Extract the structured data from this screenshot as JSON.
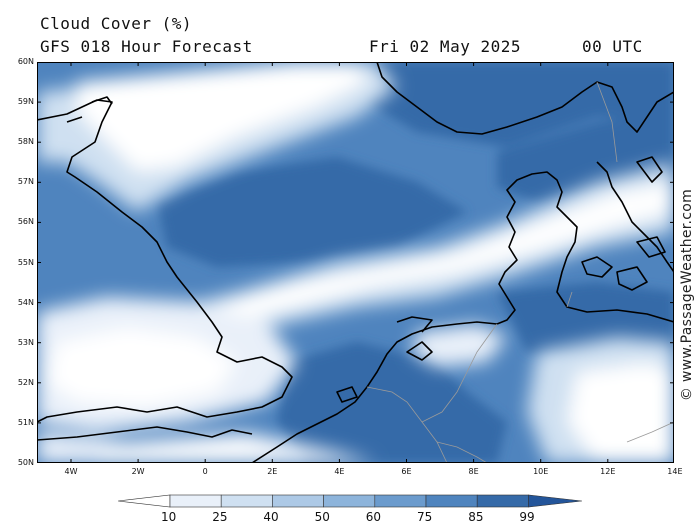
{
  "header": {
    "title": "Cloud Cover (%)",
    "subtitle": "GFS 018 Hour Forecast",
    "date": "Fri 02 May 2025",
    "time": "00 UTC"
  },
  "credit": "© www.PassageWeather.com",
  "latitude_labels": [
    "60N",
    "59N",
    "58N",
    "57N",
    "56N",
    "55N",
    "54N",
    "53N",
    "52N",
    "51N",
    "50N"
  ],
  "longitude_labels": [
    "4W",
    "2W",
    "0",
    "2E",
    "4E",
    "6E",
    "8E",
    "10E",
    "12E",
    "14E"
  ],
  "legend": {
    "thresholds": [
      "10",
      "25",
      "40",
      "50",
      "60",
      "75",
      "85",
      "99"
    ],
    "colors": [
      "#ffffff",
      "#e9f0f9",
      "#cfe0f1",
      "#adc9e6",
      "#8db4db",
      "#6b9bcd",
      "#4f84be",
      "#356aa8",
      "#23559a"
    ]
  },
  "map_colors": {
    "land_line": "#000000",
    "border_line": "#9a9a9a",
    "frame": "#000000"
  }
}
